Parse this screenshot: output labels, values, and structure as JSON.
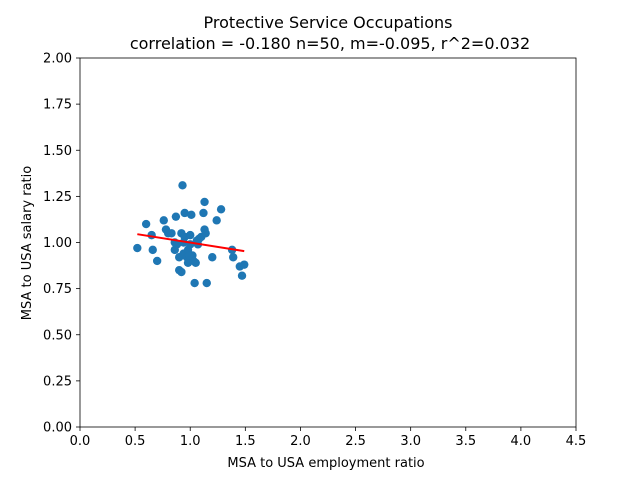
{
  "chart_data": {
    "type": "scatter",
    "title": "Protective Service Occupations",
    "subtitle": "correlation = -0.180 n=50, m=-0.095, r^2=0.032",
    "xlabel": "MSA to USA employment ratio",
    "ylabel": "MSA to USA salary ratio",
    "xlim": [
      0.0,
      4.5
    ],
    "ylim": [
      0.0,
      2.0
    ],
    "xticks": [
      "0.0",
      "0.5",
      "1.0",
      "1.5",
      "2.0",
      "2.5",
      "3.0",
      "3.5",
      "4.0",
      "4.5"
    ],
    "yticks": [
      "0.00",
      "0.25",
      "0.50",
      "0.75",
      "1.00",
      "1.25",
      "1.50",
      "1.75",
      "2.00"
    ],
    "grid": false,
    "point_color": "#1f77b4",
    "fit_color": "#ff0000",
    "points": [
      {
        "x": 0.52,
        "y": 0.97
      },
      {
        "x": 0.6,
        "y": 1.1
      },
      {
        "x": 0.65,
        "y": 1.04
      },
      {
        "x": 0.66,
        "y": 0.96
      },
      {
        "x": 0.7,
        "y": 0.9
      },
      {
        "x": 0.76,
        "y": 1.12
      },
      {
        "x": 0.78,
        "y": 1.07
      },
      {
        "x": 0.8,
        "y": 1.05
      },
      {
        "x": 0.83,
        "y": 1.05
      },
      {
        "x": 0.86,
        "y": 0.96
      },
      {
        "x": 0.87,
        "y": 1.14
      },
      {
        "x": 0.88,
        "y": 0.99
      },
      {
        "x": 0.9,
        "y": 0.92
      },
      {
        "x": 0.9,
        "y": 0.85
      },
      {
        "x": 0.92,
        "y": 1.05
      },
      {
        "x": 0.92,
        "y": 0.84
      },
      {
        "x": 0.93,
        "y": 1.31
      },
      {
        "x": 0.94,
        "y": 0.94
      },
      {
        "x": 0.95,
        "y": 1.16
      },
      {
        "x": 0.95,
        "y": 1.03
      },
      {
        "x": 0.97,
        "y": 0.92
      },
      {
        "x": 0.98,
        "y": 0.96
      },
      {
        "x": 0.98,
        "y": 0.89
      },
      {
        "x": 1.0,
        "y": 1.04
      },
      {
        "x": 1.0,
        "y": 0.99
      },
      {
        "x": 1.01,
        "y": 1.15
      },
      {
        "x": 1.02,
        "y": 0.93
      },
      {
        "x": 1.03,
        "y": 0.9
      },
      {
        "x": 1.04,
        "y": 0.78
      },
      {
        "x": 1.05,
        "y": 0.89
      },
      {
        "x": 1.06,
        "y": 1.01
      },
      {
        "x": 1.08,
        "y": 1.02
      },
      {
        "x": 1.1,
        "y": 1.03
      },
      {
        "x": 1.12,
        "y": 1.16
      },
      {
        "x": 1.13,
        "y": 1.22
      },
      {
        "x": 1.13,
        "y": 1.07
      },
      {
        "x": 1.14,
        "y": 1.05
      },
      {
        "x": 1.15,
        "y": 0.78
      },
      {
        "x": 1.2,
        "y": 0.92
      },
      {
        "x": 1.24,
        "y": 1.12
      },
      {
        "x": 1.28,
        "y": 1.18
      },
      {
        "x": 1.38,
        "y": 0.96
      },
      {
        "x": 1.39,
        "y": 0.92
      },
      {
        "x": 1.45,
        "y": 0.87
      },
      {
        "x": 1.47,
        "y": 0.82
      },
      {
        "x": 1.49,
        "y": 0.88
      },
      {
        "x": 0.86,
        "y": 1.0
      },
      {
        "x": 0.99,
        "y": 0.93
      },
      {
        "x": 1.07,
        "y": 0.99
      },
      {
        "x": 0.94,
        "y": 1.0
      }
    ],
    "fit_line": {
      "x": [
        0.52,
        1.49
      ],
      "y": [
        1.045,
        0.953
      ]
    }
  }
}
